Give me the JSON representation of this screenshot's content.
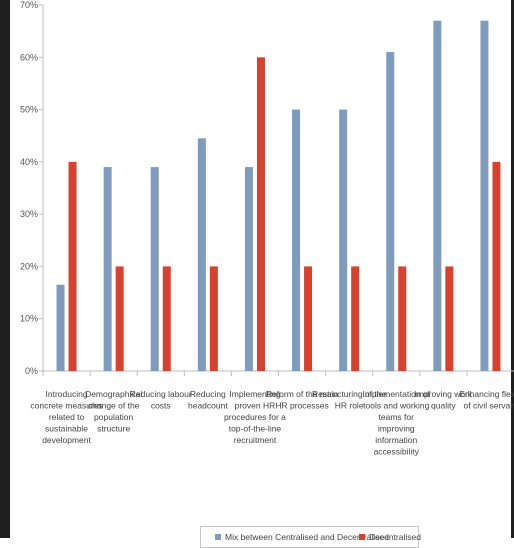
{
  "chart_data": {
    "type": "bar",
    "title": "",
    "xlabel": "",
    "ylabel": "",
    "ylim": [
      0,
      70
    ],
    "yticks": [
      "0%",
      "10%",
      "20%",
      "30%",
      "40%",
      "50%",
      "60%",
      "70%"
    ],
    "grid": false,
    "legend_position": "bottom",
    "categories": [
      [
        "Introducing",
        "concrete measures",
        "related to",
        "sustainable",
        "development"
      ],
      [
        "Demographical",
        "change of the",
        "population",
        "structure"
      ],
      [
        "Reducing labour",
        "costs"
      ],
      [
        "Reducing",
        "headcount"
      ],
      [
        "Implementing",
        "proven HR",
        "procedures for a",
        "top-of-the-line",
        "recruitment"
      ],
      [
        "Reform of the main",
        "HR processes"
      ],
      [
        "Restructuring of the",
        "HR role"
      ],
      [
        "Implementation of",
        "tools and working",
        "teams for",
        "improving",
        "information",
        "accessibility"
      ],
      [
        "Improving work",
        "quality"
      ],
      [
        "Enhancing flexib",
        "of civil servant"
      ]
    ],
    "series": [
      {
        "name": "Mix between Centralised and Decentralised",
        "color": "#7f9bbd",
        "values": [
          16.5,
          39,
          39,
          44.5,
          39,
          50,
          50,
          61,
          67,
          67
        ]
      },
      {
        "name": "Decentralised",
        "color": "#d9412f",
        "values": [
          40,
          20,
          20,
          20,
          60,
          20,
          20,
          20,
          20,
          40
        ]
      }
    ]
  }
}
